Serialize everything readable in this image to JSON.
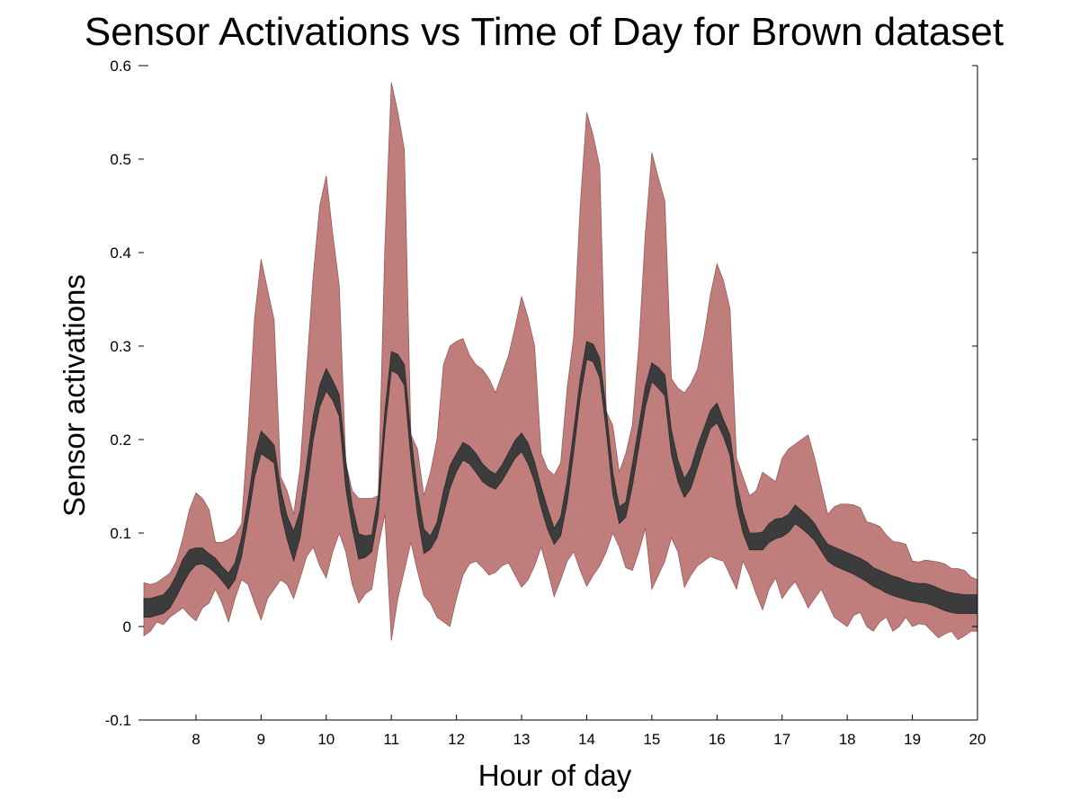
{
  "chart_data": {
    "type": "area",
    "title": "Sensor Activations vs Time of Day for Brown dataset",
    "xlabel": "Hour of day",
    "ylabel": "Sensor activations",
    "xlim": [
      7.2,
      20
    ],
    "ylim": [
      -0.1,
      0.6
    ],
    "xticks": [
      8,
      9,
      10,
      11,
      12,
      13,
      14,
      15,
      16,
      17,
      18,
      19,
      20
    ],
    "xtick_labels": [
      "8",
      "9",
      "10",
      "11",
      "12",
      "13",
      "14",
      "15",
      "16",
      "17",
      "18",
      "19",
      "20"
    ],
    "yticks": [
      -0.1,
      0,
      0.1,
      0.2,
      0.3,
      0.4,
      0.5,
      0.6
    ],
    "ytick_labels": [
      "-0.1",
      "0",
      "0.1",
      "0.2",
      "0.3",
      "0.4",
      "0.5",
      "0.6"
    ],
    "grid": false,
    "colors": {
      "outer_band": "#bf7d7b",
      "inner_band": "#3c3c3c"
    },
    "series": [
      {
        "role": "outer-band",
        "x": [
          7.2,
          7.3,
          7.4,
          7.5,
          7.6,
          7.7,
          7.8,
          7.9,
          8.0,
          8.1,
          8.2,
          8.3,
          8.4,
          8.5,
          8.6,
          8.7,
          8.8,
          8.9,
          9.0,
          9.1,
          9.2,
          9.3,
          9.4,
          9.5,
          9.6,
          9.7,
          9.8,
          9.9,
          10.0,
          10.1,
          10.2,
          10.3,
          10.4,
          10.5,
          10.6,
          10.7,
          10.8,
          10.9,
          11.0,
          11.1,
          11.2,
          11.3,
          11.4,
          11.5,
          11.6,
          11.7,
          11.8,
          11.9,
          12.0,
          12.1,
          12.2,
          12.3,
          12.4,
          12.5,
          12.6,
          12.7,
          12.8,
          12.9,
          13.0,
          13.1,
          13.2,
          13.3,
          13.4,
          13.5,
          13.6,
          13.7,
          13.8,
          13.9,
          14.0,
          14.1,
          14.2,
          14.3,
          14.4,
          14.5,
          14.6,
          14.7,
          14.8,
          14.9,
          15.0,
          15.1,
          15.2,
          15.3,
          15.4,
          15.5,
          15.6,
          15.7,
          15.8,
          15.9,
          16.0,
          16.1,
          16.2,
          16.3,
          16.4,
          16.5,
          16.6,
          16.7,
          16.8,
          16.9,
          17.0,
          17.1,
          17.2,
          17.3,
          17.4,
          17.5,
          17.6,
          17.7,
          17.8,
          17.9,
          18.0,
          18.1,
          18.2,
          18.3,
          18.4,
          18.5,
          18.6,
          18.7,
          18.8,
          18.9,
          19.0,
          19.1,
          19.2,
          19.3,
          19.4,
          19.5,
          19.6,
          19.7,
          19.8,
          19.9,
          20.0
        ],
        "upper": [
          0.047,
          0.045,
          0.047,
          0.052,
          0.057,
          0.07,
          0.095,
          0.125,
          0.143,
          0.137,
          0.125,
          0.09,
          0.09,
          0.093,
          0.098,
          0.11,
          0.21,
          0.33,
          0.393,
          0.36,
          0.328,
          0.16,
          0.145,
          0.12,
          0.17,
          0.275,
          0.375,
          0.45,
          0.482,
          0.42,
          0.365,
          0.175,
          0.145,
          0.137,
          0.137,
          0.137,
          0.14,
          0.405,
          0.582,
          0.55,
          0.51,
          0.205,
          0.19,
          0.14,
          0.165,
          0.2,
          0.28,
          0.3,
          0.305,
          0.308,
          0.29,
          0.28,
          0.275,
          0.265,
          0.25,
          0.27,
          0.29,
          0.32,
          0.353,
          0.33,
          0.3,
          0.185,
          0.168,
          0.162,
          0.175,
          0.255,
          0.31,
          0.45,
          0.55,
          0.525,
          0.492,
          0.23,
          0.215,
          0.165,
          0.185,
          0.215,
          0.3,
          0.42,
          0.507,
          0.48,
          0.455,
          0.265,
          0.255,
          0.25,
          0.26,
          0.275,
          0.31,
          0.355,
          0.388,
          0.37,
          0.34,
          0.18,
          0.16,
          0.14,
          0.145,
          0.165,
          0.16,
          0.155,
          0.18,
          0.19,
          0.195,
          0.2,
          0.205,
          0.18,
          0.15,
          0.12,
          0.128,
          0.131,
          0.131,
          0.13,
          0.127,
          0.112,
          0.11,
          0.107,
          0.098,
          0.091,
          0.09,
          0.088,
          0.07,
          0.069,
          0.071,
          0.07,
          0.069,
          0.067,
          0.062,
          0.062,
          0.06,
          0.053,
          0.05
        ],
        "lower": [
          -0.01,
          -0.005,
          0.005,
          0.002,
          0.01,
          0.015,
          0.02,
          0.012,
          0.006,
          0.02,
          0.025,
          0.04,
          0.025,
          0.005,
          0.03,
          0.05,
          0.045,
          0.025,
          0.007,
          0.03,
          0.04,
          0.05,
          0.045,
          0.03,
          0.052,
          0.075,
          0.085,
          0.065,
          0.052,
          0.08,
          0.1,
          0.08,
          0.045,
          0.025,
          0.035,
          0.04,
          0.085,
          0.12,
          -0.015,
          0.03,
          0.06,
          0.09,
          0.06,
          0.033,
          0.025,
          0.01,
          0.005,
          0.0,
          0.03,
          0.055,
          0.067,
          0.07,
          0.063,
          0.055,
          0.058,
          0.065,
          0.068,
          0.055,
          0.042,
          0.05,
          0.065,
          0.085,
          0.06,
          0.032,
          0.05,
          0.07,
          0.08,
          0.06,
          0.043,
          0.055,
          0.065,
          0.08,
          0.1,
          0.085,
          0.063,
          0.06,
          0.08,
          0.105,
          0.04,
          0.055,
          0.07,
          0.095,
          0.08,
          0.042,
          0.055,
          0.065,
          0.07,
          0.075,
          0.072,
          0.07,
          0.055,
          0.04,
          0.07,
          0.055,
          0.035,
          0.018,
          0.04,
          0.052,
          0.03,
          0.04,
          0.048,
          0.035,
          0.02,
          0.03,
          0.04,
          0.025,
          0.01,
          0.005,
          0.0,
          0.012,
          0.015,
          0.0,
          -0.005,
          0.005,
          0.01,
          -0.005,
          0.0,
          0.01,
          0.0,
          0.003,
          0.002,
          -0.005,
          -0.012,
          -0.008,
          -0.005,
          -0.014,
          -0.01,
          -0.005,
          -0.005
        ]
      },
      {
        "role": "inner-band",
        "x": [
          7.2,
          7.3,
          7.4,
          7.5,
          7.6,
          7.7,
          7.8,
          7.9,
          8.0,
          8.1,
          8.2,
          8.3,
          8.4,
          8.5,
          8.6,
          8.7,
          8.8,
          8.9,
          9.0,
          9.1,
          9.2,
          9.3,
          9.4,
          9.5,
          9.6,
          9.7,
          9.8,
          9.9,
          10.0,
          10.1,
          10.2,
          10.3,
          10.4,
          10.5,
          10.6,
          10.7,
          10.8,
          10.9,
          11.0,
          11.1,
          11.2,
          11.3,
          11.4,
          11.5,
          11.6,
          11.7,
          11.8,
          11.9,
          12.0,
          12.1,
          12.2,
          12.3,
          12.4,
          12.5,
          12.6,
          12.7,
          12.8,
          12.9,
          13.0,
          13.1,
          13.2,
          13.3,
          13.4,
          13.5,
          13.6,
          13.7,
          13.8,
          13.9,
          14.0,
          14.1,
          14.2,
          14.3,
          14.4,
          14.5,
          14.6,
          14.7,
          14.8,
          14.9,
          15.0,
          15.1,
          15.2,
          15.3,
          15.4,
          15.5,
          15.6,
          15.7,
          15.8,
          15.9,
          16.0,
          16.1,
          16.2,
          16.3,
          16.4,
          16.5,
          16.6,
          16.7,
          16.8,
          16.9,
          17.0,
          17.1,
          17.2,
          17.3,
          17.4,
          17.5,
          17.6,
          17.7,
          17.8,
          17.9,
          18.0,
          18.1,
          18.2,
          18.3,
          18.4,
          18.5,
          18.6,
          18.7,
          18.8,
          18.9,
          19.0,
          19.1,
          19.2,
          19.3,
          19.4,
          19.5,
          19.6,
          19.7,
          19.8,
          19.9,
          20.0
        ],
        "upper": [
          0.03,
          0.03,
          0.032,
          0.034,
          0.042,
          0.055,
          0.072,
          0.082,
          0.084,
          0.084,
          0.078,
          0.073,
          0.064,
          0.057,
          0.068,
          0.095,
          0.135,
          0.183,
          0.209,
          0.202,
          0.194,
          0.147,
          0.118,
          0.102,
          0.124,
          0.174,
          0.225,
          0.258,
          0.276,
          0.263,
          0.248,
          0.178,
          0.129,
          0.099,
          0.097,
          0.098,
          0.14,
          0.23,
          0.294,
          0.291,
          0.28,
          0.205,
          0.145,
          0.104,
          0.097,
          0.111,
          0.145,
          0.172,
          0.185,
          0.197,
          0.193,
          0.185,
          0.174,
          0.167,
          0.163,
          0.173,
          0.186,
          0.199,
          0.207,
          0.196,
          0.176,
          0.149,
          0.126,
          0.105,
          0.117,
          0.156,
          0.209,
          0.265,
          0.305,
          0.302,
          0.287,
          0.232,
          0.165,
          0.128,
          0.133,
          0.173,
          0.214,
          0.257,
          0.282,
          0.277,
          0.269,
          0.21,
          0.178,
          0.158,
          0.17,
          0.193,
          0.212,
          0.231,
          0.239,
          0.221,
          0.205,
          0.154,
          0.122,
          0.1,
          0.1,
          0.101,
          0.11,
          0.115,
          0.116,
          0.12,
          0.13,
          0.124,
          0.118,
          0.11,
          0.098,
          0.088,
          0.085,
          0.082,
          0.079,
          0.076,
          0.073,
          0.069,
          0.063,
          0.06,
          0.057,
          0.054,
          0.052,
          0.049,
          0.047,
          0.046,
          0.046,
          0.044,
          0.041,
          0.038,
          0.036,
          0.035,
          0.034,
          0.034,
          0.034
        ],
        "lower": [
          0.01,
          0.01,
          0.012,
          0.014,
          0.02,
          0.032,
          0.046,
          0.058,
          0.066,
          0.067,
          0.063,
          0.057,
          0.049,
          0.04,
          0.05,
          0.075,
          0.115,
          0.16,
          0.185,
          0.18,
          0.175,
          0.123,
          0.093,
          0.07,
          0.095,
          0.145,
          0.2,
          0.235,
          0.252,
          0.242,
          0.225,
          0.148,
          0.105,
          0.072,
          0.074,
          0.08,
          0.12,
          0.209,
          0.274,
          0.27,
          0.258,
          0.18,
          0.12,
          0.078,
          0.083,
          0.095,
          0.12,
          0.148,
          0.166,
          0.178,
          0.174,
          0.165,
          0.155,
          0.15,
          0.147,
          0.156,
          0.168,
          0.18,
          0.187,
          0.174,
          0.155,
          0.127,
          0.104,
          0.088,
          0.097,
          0.133,
          0.187,
          0.245,
          0.286,
          0.283,
          0.266,
          0.21,
          0.142,
          0.11,
          0.117,
          0.15,
          0.192,
          0.235,
          0.262,
          0.255,
          0.247,
          0.184,
          0.155,
          0.138,
          0.148,
          0.17,
          0.192,
          0.212,
          0.218,
          0.203,
          0.183,
          0.13,
          0.1,
          0.082,
          0.082,
          0.082,
          0.09,
          0.094,
          0.096,
          0.101,
          0.11,
          0.105,
          0.099,
          0.092,
          0.081,
          0.07,
          0.065,
          0.062,
          0.059,
          0.056,
          0.052,
          0.048,
          0.043,
          0.04,
          0.036,
          0.033,
          0.031,
          0.029,
          0.027,
          0.026,
          0.025,
          0.023,
          0.02,
          0.017,
          0.015,
          0.014,
          0.014,
          0.014,
          0.014
        ]
      }
    ]
  }
}
